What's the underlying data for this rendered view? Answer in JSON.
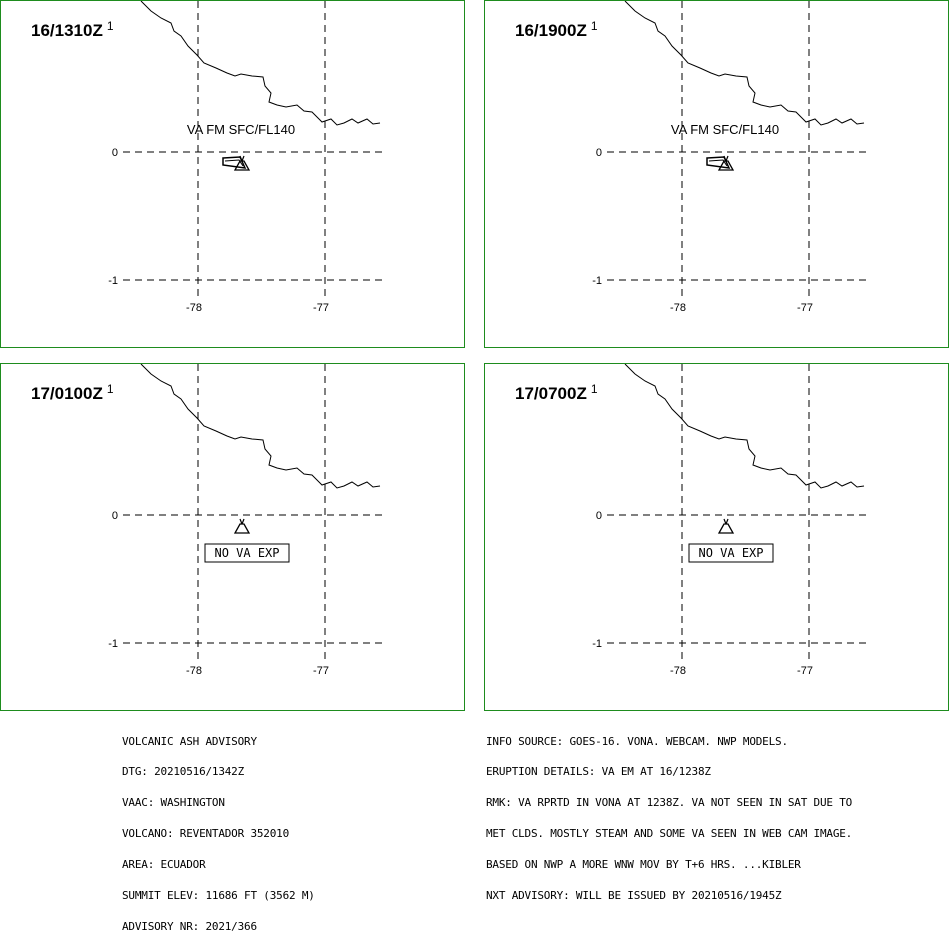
{
  "panels": [
    {
      "time": "16/1310Z",
      "footnote": "1",
      "ash_label": "VA FM SFC/FL140",
      "no_va_label": ""
    },
    {
      "time": "16/1900Z",
      "footnote": "1",
      "ash_label": "VA FM SFC/FL140",
      "no_va_label": ""
    },
    {
      "time": "17/0100Z",
      "footnote": "1",
      "ash_label": "",
      "no_va_label": "NO VA EXP"
    },
    {
      "time": "17/0700Z",
      "footnote": "1",
      "ash_label": "",
      "no_va_label": "NO VA EXP"
    }
  ],
  "axes": {
    "lat_labels": [
      "0",
      "-1"
    ],
    "lon_labels": [
      "-78",
      "-77"
    ]
  },
  "advisory_left": [
    "VOLCANIC ASH ADVISORY",
    "DTG: 20210516/1342Z",
    "VAAC: WASHINGTON",
    "VOLCANO: REVENTADOR 352010",
    "AREA: ECUADOR",
    "SUMMIT ELEV: 11686 FT (3562 M)",
    "ADVISORY NR: 2021/366"
  ],
  "advisory_right": [
    "INFO SOURCE: GOES-16. VONA. WEBCAM. NWP MODELS.",
    "ERUPTION DETAILS: VA EM AT 16/1238Z",
    "RMK: VA RPRTD IN VONA AT 1238Z. VA NOT SEEN IN SAT DUE TO",
    "MET CLDS. MOSTLY STEAM AND SOME VA SEEN IN WEB CAM IMAGE.",
    "BASED ON NWP A MORE WNW MOV BY T+6 HRS. ...KIBLER",
    "NXT ADVISORY: WILL BE ISSUED BY 20210516/1945Z"
  ],
  "colors": {
    "panel_border": "#1e8c1e",
    "lines": "#000000"
  }
}
